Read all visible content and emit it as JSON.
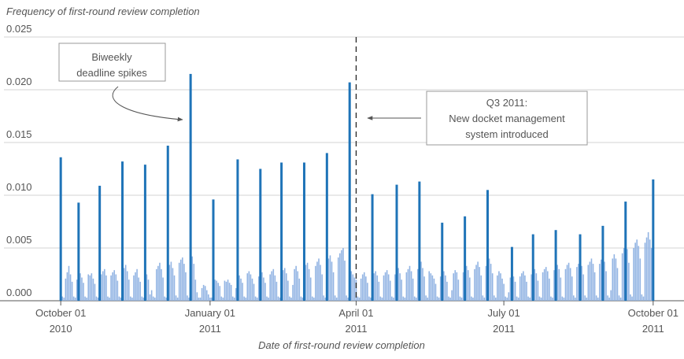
{
  "chart_data": {
    "type": "bar",
    "y_axis_label": "Frequency of first-round review completion",
    "x_axis_label": "Date of first-round review completion",
    "xlim": [
      "2010-08-27",
      "2011-10-20"
    ],
    "ylim": [
      0,
      0.025
    ],
    "yticks": [
      {
        "value": 0,
        "label": "0.000"
      },
      0.005,
      {
        "value": 0.01,
        "label": "0.010"
      },
      0.015,
      {
        "value": 0.02,
        "label": "0.020"
      },
      0.025
    ],
    "xticks": [
      {
        "value": "2010-10-01",
        "label": [
          "October 01",
          "2010"
        ]
      },
      {
        "value": "2011-01-01",
        "label": [
          "January 01",
          "2011"
        ]
      },
      {
        "value": "2011-04-01",
        "label": [
          "April 01",
          "2011"
        ]
      },
      {
        "value": "2011-07-01",
        "label": [
          "July 01",
          "2011"
        ]
      },
      {
        "value": "2011-10-01",
        "label": [
          "October 01",
          "2011"
        ]
      }
    ],
    "grid": true,
    "series": [
      {
        "color": "#92b4e3",
        "x": [
          "2010-10-01",
          "2010-10-02",
          "2010-10-03",
          "2010-10-04",
          "2010-10-05",
          "2010-10-06",
          "2010-10-07",
          "2010-10-08",
          "2010-10-09",
          "2010-10-10",
          "2010-10-11",
          "2010-10-12",
          "2010-10-13",
          "2010-10-14",
          "2010-10-15",
          "2010-10-16",
          "2010-10-17",
          "2010-10-18",
          "2010-10-19",
          "2010-10-20",
          "2010-10-21",
          "2010-10-22",
          "2010-10-23",
          "2010-10-24",
          "2010-10-25",
          "2010-10-26",
          "2010-10-27",
          "2010-10-28",
          "2010-10-29",
          "2010-10-30",
          "2010-10-31",
          "2010-11-01",
          "2010-11-02",
          "2010-11-03",
          "2010-11-04",
          "2010-11-05",
          "2010-11-06",
          "2010-11-07",
          "2010-11-08",
          "2010-11-09",
          "2010-11-10",
          "2010-11-11",
          "2010-11-12",
          "2010-11-13",
          "2010-11-14",
          "2010-11-15",
          "2010-11-16",
          "2010-11-17",
          "2010-11-18",
          "2010-11-19",
          "2010-11-20",
          "2010-11-21",
          "2010-11-22",
          "2010-11-23",
          "2010-11-24",
          "2010-11-25",
          "2010-11-26",
          "2010-11-27",
          "2010-11-28",
          "2010-11-29",
          "2010-11-30",
          "2010-12-01",
          "2010-12-02",
          "2010-12-03",
          "2010-12-04",
          "2010-12-05",
          "2010-12-06",
          "2010-12-07",
          "2010-12-08",
          "2010-12-09",
          "2010-12-10",
          "2010-12-11",
          "2010-12-12",
          "2010-12-13",
          "2010-12-14",
          "2010-12-15",
          "2010-12-16",
          "2010-12-17",
          "2010-12-18",
          "2010-12-19",
          "2010-12-20",
          "2010-12-21",
          "2010-12-22",
          "2010-12-23",
          "2010-12-24",
          "2010-12-25",
          "2010-12-26",
          "2010-12-27",
          "2010-12-28",
          "2010-12-29",
          "2010-12-30",
          "2010-12-31",
          "2011-01-01",
          "2011-01-02",
          "2011-01-03",
          "2011-01-04",
          "2011-01-05",
          "2011-01-06",
          "2011-01-07",
          "2011-01-08",
          "2011-01-09",
          "2011-01-10",
          "2011-01-11",
          "2011-01-12",
          "2011-01-13",
          "2011-01-14",
          "2011-01-15",
          "2011-01-16",
          "2011-01-17",
          "2011-01-18",
          "2011-01-19",
          "2011-01-20",
          "2011-01-21",
          "2011-01-22",
          "2011-01-23",
          "2011-01-24",
          "2011-01-25",
          "2011-01-26",
          "2011-01-27",
          "2011-01-28",
          "2011-01-29",
          "2011-01-30",
          "2011-01-31",
          "2011-02-01",
          "2011-02-02",
          "2011-02-03",
          "2011-02-04",
          "2011-02-05",
          "2011-02-06",
          "2011-02-07",
          "2011-02-08",
          "2011-02-09",
          "2011-02-10",
          "2011-02-11",
          "2011-02-12",
          "2011-02-13",
          "2011-02-14",
          "2011-02-15",
          "2011-02-16",
          "2011-02-17",
          "2011-02-18",
          "2011-02-19",
          "2011-02-20",
          "2011-02-21",
          "2011-02-22",
          "2011-02-23",
          "2011-02-24",
          "2011-02-25",
          "2011-02-26",
          "2011-02-27",
          "2011-02-28",
          "2011-03-01",
          "2011-03-02",
          "2011-03-03",
          "2011-03-04",
          "2011-03-05",
          "2011-03-06",
          "2011-03-07",
          "2011-03-08",
          "2011-03-09",
          "2011-03-10",
          "2011-03-11",
          "2011-03-12",
          "2011-03-13",
          "2011-03-14",
          "2011-03-15",
          "2011-03-16",
          "2011-03-17",
          "2011-03-18",
          "2011-03-19",
          "2011-03-20",
          "2011-03-21",
          "2011-03-22",
          "2011-03-23",
          "2011-03-24",
          "2011-03-25",
          "2011-03-26",
          "2011-03-27",
          "2011-03-28",
          "2011-03-29",
          "2011-03-30",
          "2011-03-31",
          "2011-04-01",
          "2011-04-02",
          "2011-04-03",
          "2011-04-04",
          "2011-04-05",
          "2011-04-06",
          "2011-04-07",
          "2011-04-08",
          "2011-04-09",
          "2011-04-10",
          "2011-04-11",
          "2011-04-12",
          "2011-04-13",
          "2011-04-14",
          "2011-04-15",
          "2011-04-16",
          "2011-04-17",
          "2011-04-18",
          "2011-04-19",
          "2011-04-20",
          "2011-04-21",
          "2011-04-22",
          "2011-04-23",
          "2011-04-24",
          "2011-04-25",
          "2011-04-26",
          "2011-04-27",
          "2011-04-28",
          "2011-04-29",
          "2011-04-30",
          "2011-05-01",
          "2011-05-02",
          "2011-05-03",
          "2011-05-04",
          "2011-05-05",
          "2011-05-06",
          "2011-05-07",
          "2011-05-08",
          "2011-05-09",
          "2011-05-10",
          "2011-05-11",
          "2011-05-12",
          "2011-05-13",
          "2011-05-14",
          "2011-05-15",
          "2011-05-16",
          "2011-05-17",
          "2011-05-18",
          "2011-05-19",
          "2011-05-20",
          "2011-05-21",
          "2011-05-22",
          "2011-05-23",
          "2011-05-24",
          "2011-05-25",
          "2011-05-26",
          "2011-05-27",
          "2011-05-28",
          "2011-05-29",
          "2011-05-30",
          "2011-05-31",
          "2011-06-01",
          "2011-06-02",
          "2011-06-03",
          "2011-06-04",
          "2011-06-05",
          "2011-06-06",
          "2011-06-07",
          "2011-06-08",
          "2011-06-09",
          "2011-06-10",
          "2011-06-11",
          "2011-06-12",
          "2011-06-13",
          "2011-06-14",
          "2011-06-15",
          "2011-06-16",
          "2011-06-17",
          "2011-06-18",
          "2011-06-19",
          "2011-06-20",
          "2011-06-21",
          "2011-06-22",
          "2011-06-23",
          "2011-06-24",
          "2011-06-25",
          "2011-06-26",
          "2011-06-27",
          "2011-06-28",
          "2011-06-29",
          "2011-06-30",
          "2011-07-01",
          "2011-07-02",
          "2011-07-03",
          "2011-07-04",
          "2011-07-05",
          "2011-07-06",
          "2011-07-07",
          "2011-07-08",
          "2011-07-09",
          "2011-07-10",
          "2011-07-11",
          "2011-07-12",
          "2011-07-13",
          "2011-07-14",
          "2011-07-15",
          "2011-07-16",
          "2011-07-17",
          "2011-07-18",
          "2011-07-19",
          "2011-07-20",
          "2011-07-21",
          "2011-07-22",
          "2011-07-23",
          "2011-07-24",
          "2011-07-25",
          "2011-07-26",
          "2011-07-27",
          "2011-07-28",
          "2011-07-29",
          "2011-07-30",
          "2011-07-31",
          "2011-08-01",
          "2011-08-02",
          "2011-08-03",
          "2011-08-04",
          "2011-08-05",
          "2011-08-06",
          "2011-08-07",
          "2011-08-08",
          "2011-08-09",
          "2011-08-10",
          "2011-08-11",
          "2011-08-12",
          "2011-08-13",
          "2011-08-14",
          "2011-08-15",
          "2011-08-16",
          "2011-08-17",
          "2011-08-18",
          "2011-08-19",
          "2011-08-20",
          "2011-08-21",
          "2011-08-22",
          "2011-08-23",
          "2011-08-24",
          "2011-08-25",
          "2011-08-26",
          "2011-08-27",
          "2011-08-28",
          "2011-08-29",
          "2011-08-30",
          "2011-08-31",
          "2011-09-01",
          "2011-09-02",
          "2011-09-03",
          "2011-09-04",
          "2011-09-05",
          "2011-09-06",
          "2011-09-07",
          "2011-09-08",
          "2011-09-09",
          "2011-09-10",
          "2011-09-11",
          "2011-09-12",
          "2011-09-13",
          "2011-09-14",
          "2011-09-15",
          "2011-09-16",
          "2011-09-17",
          "2011-09-18",
          "2011-09-19",
          "2011-09-20",
          "2011-09-21",
          "2011-09-22",
          "2011-09-23",
          "2011-09-24",
          "2011-09-25",
          "2011-09-26",
          "2011-09-27",
          "2011-09-28",
          "2011-09-29",
          "2011-09-30",
          "2011-10-01"
        ],
        "values": [
          0.0012,
          0.0004,
          0.0003,
          0.0021,
          0.0027,
          0.0033,
          0.0025,
          0.0018,
          0.0004,
          0.0003,
          0.002,
          0.0024,
          0.0026,
          0.0022,
          0.0017,
          0.0004,
          0.0003,
          0.0025,
          0.0024,
          0.0026,
          0.0021,
          0.0016,
          0.0004,
          0.0003,
          0.0023,
          0.0025,
          0.0028,
          0.003,
          0.0024,
          0.0004,
          0.0003,
          0.0024,
          0.0027,
          0.0029,
          0.0025,
          0.0019,
          0.0004,
          0.0003,
          0.0026,
          0.0031,
          0.0034,
          0.0028,
          0.002,
          0.0004,
          0.0003,
          0.0024,
          0.0027,
          0.003,
          0.0022,
          0.0018,
          0.0004,
          0.0003,
          0.0028,
          0.0025,
          0.002,
          0.0006,
          0.001,
          0.0004,
          0.0003,
          0.003,
          0.0033,
          0.0036,
          0.003,
          0.0022,
          0.0004,
          0.0003,
          0.0032,
          0.0034,
          0.0037,
          0.0031,
          0.0024,
          0.0005,
          0.0003,
          0.0036,
          0.0039,
          0.0041,
          0.0035,
          0.0027,
          0.0005,
          0.0003,
          0.004,
          0.0042,
          0.0035,
          0.002,
          0.0008,
          0.0003,
          0.0003,
          0.0012,
          0.0015,
          0.0014,
          0.001,
          0.0006,
          0.0003,
          0.0003,
          0.0018,
          0.002,
          0.0019,
          0.0017,
          0.0014,
          0.0004,
          0.0003,
          0.0019,
          0.0018,
          0.002,
          0.0017,
          0.0015,
          0.0004,
          0.0003,
          0.0012,
          0.0022,
          0.0024,
          0.0021,
          0.0017,
          0.0004,
          0.0003,
          0.0026,
          0.0028,
          0.0025,
          0.0021,
          0.0016,
          0.0004,
          0.0003,
          0.0023,
          0.0025,
          0.0027,
          0.0022,
          0.0017,
          0.0004,
          0.0003,
          0.0025,
          0.0028,
          0.003,
          0.0024,
          0.0018,
          0.0004,
          0.0003,
          0.0027,
          0.0029,
          0.0031,
          0.0026,
          0.0019,
          0.0004,
          0.0003,
          0.0015,
          0.003,
          0.0033,
          0.0028,
          0.0021,
          0.0004,
          0.0003,
          0.0032,
          0.0034,
          0.0036,
          0.003,
          0.0022,
          0.0004,
          0.0003,
          0.0033,
          0.0037,
          0.004,
          0.0034,
          0.0025,
          0.0005,
          0.0003,
          0.0036,
          0.004,
          0.0043,
          0.0037,
          0.0027,
          0.0005,
          0.0003,
          0.0041,
          0.0045,
          0.0048,
          0.005,
          0.0038,
          0.0005,
          0.0003,
          0.0036,
          0.0028,
          0.0025,
          0.0022,
          0.002,
          0.0004,
          0.0003,
          0.0021,
          0.0025,
          0.0027,
          0.0023,
          0.0017,
          0.0004,
          0.0003,
          0.0022,
          0.0026,
          0.0028,
          0.0024,
          0.0018,
          0.0004,
          0.0003,
          0.0024,
          0.0027,
          0.0029,
          0.0025,
          0.0019,
          0.0004,
          0.0003,
          0.0025,
          0.0028,
          0.0031,
          0.0026,
          0.002,
          0.0004,
          0.0003,
          0.0027,
          0.003,
          0.0033,
          0.0028,
          0.0021,
          0.0004,
          0.0003,
          0.003,
          0.0034,
          0.0037,
          0.0031,
          0.0023,
          0.0005,
          0.0003,
          0.0028,
          0.0026,
          0.0024,
          0.0021,
          0.0016,
          0.0004,
          0.0003,
          0.0023,
          0.0026,
          0.0028,
          0.0024,
          0.0018,
          0.0004,
          0.0003,
          0.001,
          0.0026,
          0.0029,
          0.0027,
          0.002,
          0.0004,
          0.0003,
          0.0027,
          0.003,
          0.0033,
          0.0029,
          0.0022,
          0.0004,
          0.0003,
          0.003,
          0.0034,
          0.0037,
          0.0032,
          0.0024,
          0.0005,
          0.0003,
          0.0033,
          0.0037,
          0.004,
          0.0035,
          0.0026,
          0.0005,
          0.0003,
          0.0024,
          0.0028,
          0.0026,
          0.0021,
          0.0016,
          0.0004,
          0.0003,
          0.0008,
          0.0022,
          0.0025,
          0.0023,
          0.0018,
          0.0004,
          0.0003,
          0.0023,
          0.0026,
          0.0028,
          0.0024,
          0.0018,
          0.0004,
          0.0003,
          0.0025,
          0.0028,
          0.003,
          0.0026,
          0.0019,
          0.0004,
          0.0003,
          0.0027,
          0.003,
          0.0032,
          0.0028,
          0.0021,
          0.0004,
          0.0003,
          0.0029,
          0.0032,
          0.0034,
          0.003,
          0.0022,
          0.0004,
          0.0003,
          0.003,
          0.0034,
          0.0036,
          0.0031,
          0.0023,
          0.0005,
          0.0003,
          0.0032,
          0.0035,
          0.0038,
          0.0033,
          0.0025,
          0.0005,
          0.0003,
          0.0034,
          0.0037,
          0.004,
          0.0035,
          0.0027,
          0.0005,
          0.0003,
          0.0035,
          0.0039,
          0.0042,
          0.0037,
          0.0028,
          0.0005,
          0.0003,
          0.001,
          0.004,
          0.0044,
          0.004,
          0.0031,
          0.0005,
          0.0003,
          0.0045,
          0.005,
          0.0055,
          0.0049,
          0.0036,
          0.0006,
          0.0004,
          0.005,
          0.0055,
          0.0058,
          0.0052,
          0.004,
          0.0006,
          0.0004,
          0.0055,
          0.006,
          0.0065,
          0.0058,
          0.005,
          0.0006
        ]
      },
      {
        "color": "#1f74b8",
        "x": [
          "2010-10-01",
          "2010-10-12",
          "2010-10-25",
          "2010-11-08",
          "2010-11-22",
          "2010-12-06",
          "2010-12-20",
          "2011-01-03",
          "2011-01-18",
          "2011-02-01",
          "2011-02-14",
          "2011-02-28",
          "2011-03-14",
          "2011-03-28",
          "2011-04-11",
          "2011-04-26",
          "2011-05-10",
          "2011-05-24",
          "2011-06-07",
          "2011-06-21",
          "2011-07-06",
          "2011-07-19",
          "2011-08-02",
          "2011-08-17",
          "2011-08-31",
          "2011-09-14",
          "2011-10-01"
        ],
        "values": [
          0.0136,
          0.0093,
          0.0109,
          0.0132,
          0.0129,
          0.0147,
          0.0215,
          0.0096,
          0.0134,
          0.0125,
          0.0131,
          0.0131,
          0.014,
          0.0207,
          0.0101,
          0.011,
          0.0113,
          0.0074,
          0.008,
          0.0105,
          0.0051,
          0.0063,
          0.0067,
          0.0063,
          0.0071,
          0.0094,
          0.0115
        ]
      }
    ],
    "reference_line": {
      "x": "2011-04-01",
      "style": "dashed"
    },
    "annotations": [
      {
        "text": [
          "Biweekly",
          "deadline spikes"
        ]
      },
      {
        "text": [
          "Q3 2011:",
          "New docket management",
          "system introduced"
        ]
      }
    ]
  }
}
